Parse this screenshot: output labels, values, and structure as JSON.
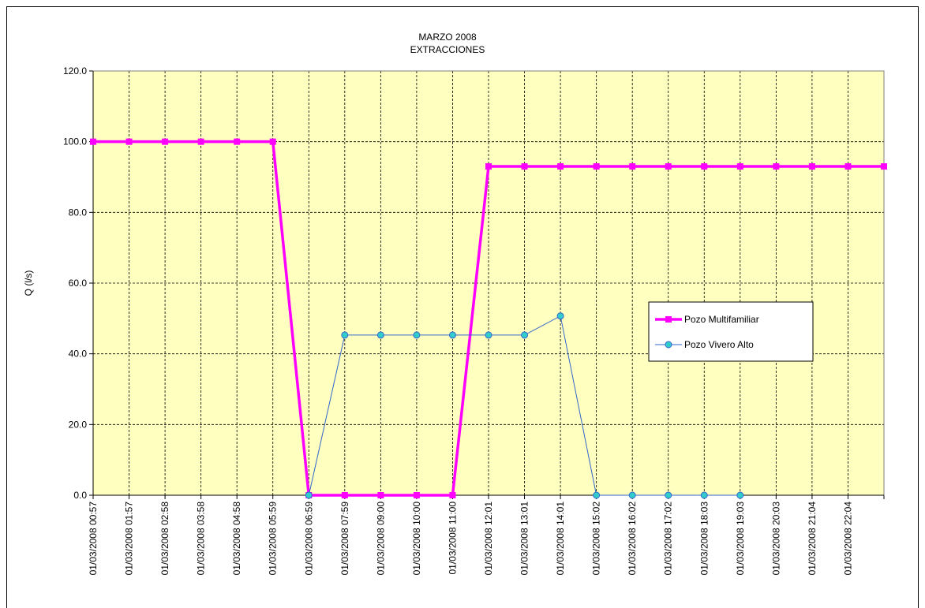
{
  "chart_data": {
    "type": "line",
    "title": "MARZO 2008",
    "subtitle": "EXTRACCIONES",
    "y_label": "Q (l/s)",
    "categories": [
      "01/03/2008 00:57",
      "01/03/2008 01:57",
      "01/03/2008 02:58",
      "01/03/2008 03:58",
      "01/03/2008 04:58",
      "01/03/2008 05:59",
      "01/03/2008 06:59",
      "01/03/2008 07:59",
      "01/03/2008 09:00",
      "01/03/2008 10:00",
      "01/03/2008 11:00",
      "01/03/2008 12:01",
      "01/03/2008 13:01",
      "01/03/2008 14:01",
      "01/03/2008 15:02",
      "01/03/2008 16:02",
      "01/03/2008 17:02",
      "01/03/2008 18:03",
      "01/03/2008 19:03",
      "01/03/2008 20:03",
      "01/03/2008 21:04",
      "01/03/2008 22:04",
      null
    ],
    "series": [
      {
        "name": "Pozo Multifamiliar",
        "color": "#ff00ff",
        "marker": "square",
        "values": [
          100,
          100,
          100,
          100,
          100,
          100,
          0,
          0,
          0,
          0,
          0,
          93,
          93,
          93,
          93,
          93,
          93,
          93,
          93,
          93,
          93,
          93,
          93
        ]
      },
      {
        "name": "Pozo Vivero Alto",
        "color": "#3366cc",
        "marker": "circle",
        "values": [
          null,
          null,
          null,
          null,
          null,
          null,
          0,
          45.3,
          45.3,
          45.3,
          45.3,
          45.3,
          45.3,
          50.7,
          0,
          0,
          0,
          0,
          0,
          null,
          null,
          null,
          null
        ]
      }
    ],
    "ylim": [
      0,
      120
    ],
    "yticks": [
      {
        "value": 0,
        "label": "0.0"
      },
      {
        "value": 20,
        "label": "20.0"
      },
      {
        "value": 40,
        "label": "40.0"
      },
      {
        "value": 60,
        "label": "60.0"
      },
      {
        "value": 80,
        "label": "80.0"
      },
      {
        "value": 100,
        "label": "100.0"
      },
      {
        "value": 120,
        "label": "120.0"
      }
    ],
    "grid": true,
    "legend": "right"
  }
}
